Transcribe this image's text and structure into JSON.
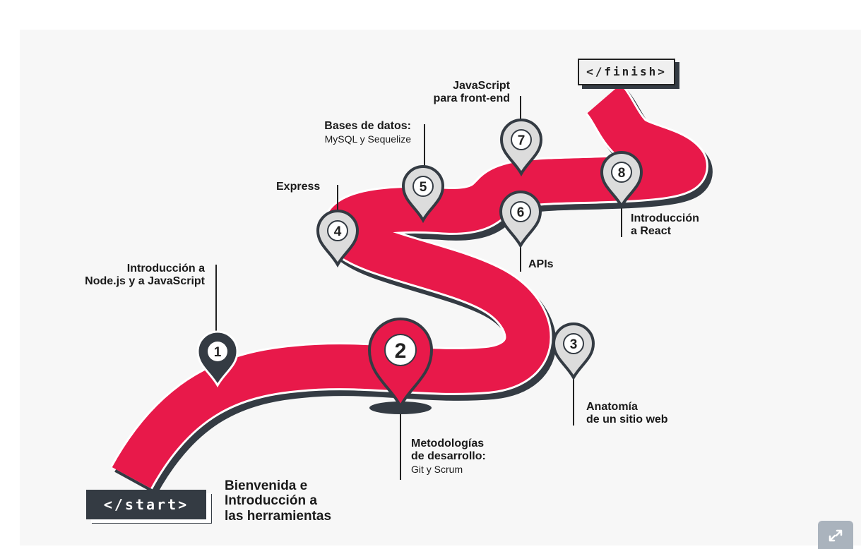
{
  "start_tag": "</start>",
  "finish_tag": "</finish>",
  "start_text": [
    "Bienvenida e",
    "Introducción a",
    "las herramientas"
  ],
  "steps": [
    {
      "number": "1",
      "title": [
        "Introducción a",
        "Node.js y a JavaScript"
      ],
      "subtitle": ""
    },
    {
      "number": "2",
      "title": [
        "Metodologías",
        "de desarrollo:"
      ],
      "subtitle": "Git y Scrum"
    },
    {
      "number": "3",
      "title": [
        "Anatomía",
        "de un sitio web"
      ],
      "subtitle": ""
    },
    {
      "number": "4",
      "title": [
        "Express"
      ],
      "subtitle": ""
    },
    {
      "number": "5",
      "title": [
        "Bases de datos:"
      ],
      "subtitle": "MySQL y Sequelize"
    },
    {
      "number": "6",
      "title": [
        "APIs"
      ],
      "subtitle": ""
    },
    {
      "number": "7",
      "title": [
        "JavaScript",
        "para front-end"
      ],
      "subtitle": ""
    },
    {
      "number": "8",
      "title": [
        "Introducción",
        "a React"
      ],
      "subtitle": ""
    }
  ],
  "colors": {
    "road": "#e8194a",
    "dark": "#343b43",
    "pin_light": "#dcdcdc"
  },
  "icons": {
    "expand": "expand-arrows-icon"
  }
}
